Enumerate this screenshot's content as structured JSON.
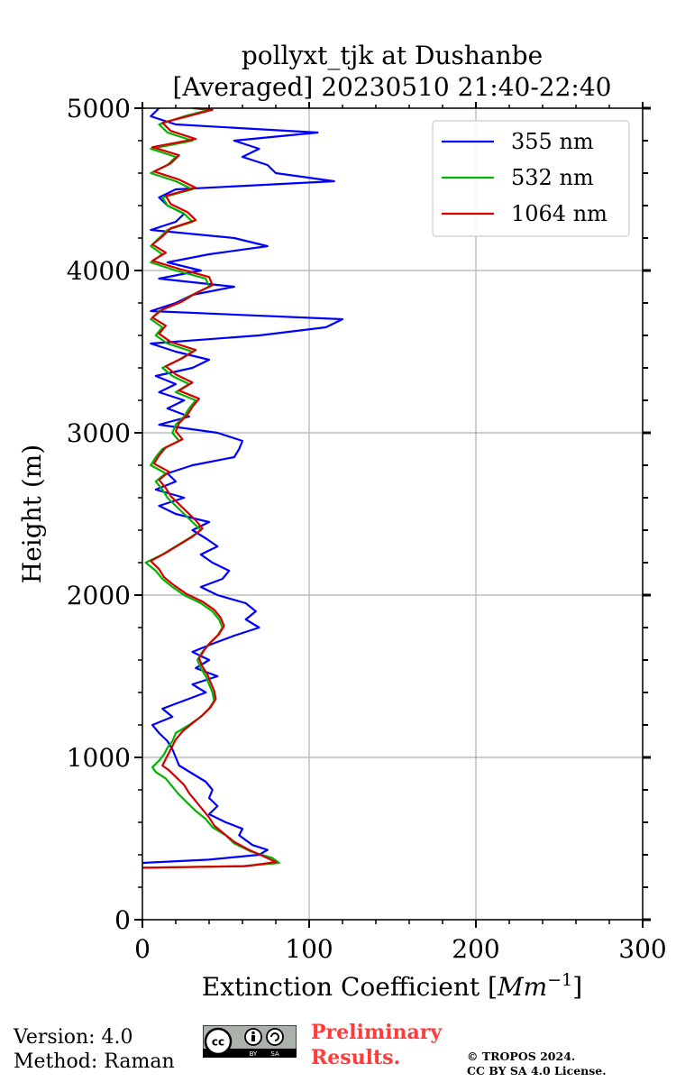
{
  "chart_data": {
    "type": "line",
    "title_line1": "pollyxt_tjk at Dushanbe",
    "title_line2": "[Averaged] 20230510 21:40-22:40",
    "xlabel_text": "Extinction Coefficient [",
    "xlabel_unit": "Mm",
    "xlabel_exp": "−1",
    "xlabel_close": "]",
    "ylabel": "Height (m)",
    "xlim": [
      0,
      300
    ],
    "ylim": [
      0,
      5000
    ],
    "xticks": [
      0,
      100,
      200,
      300
    ],
    "yticks": [
      0,
      1000,
      2000,
      3000,
      4000,
      5000
    ],
    "grid": true,
    "legend_location": "top-right",
    "series": [
      {
        "name": "355 nm",
        "color": "#0000ff",
        "points": [
          [
            0,
            350
          ],
          [
            40,
            370
          ],
          [
            70,
            400
          ],
          [
            75,
            430
          ],
          [
            66,
            460
          ],
          [
            58,
            520
          ],
          [
            60,
            560
          ],
          [
            50,
            600
          ],
          [
            40,
            650
          ],
          [
            45,
            700
          ],
          [
            40,
            750
          ],
          [
            42,
            800
          ],
          [
            38,
            850
          ],
          [
            30,
            900
          ],
          [
            22,
            950
          ],
          [
            20,
            1000
          ],
          [
            18,
            1050
          ],
          [
            15,
            1100
          ],
          [
            10,
            1150
          ],
          [
            6,
            1200
          ],
          [
            18,
            1250
          ],
          [
            12,
            1300
          ],
          [
            25,
            1350
          ],
          [
            38,
            1400
          ],
          [
            30,
            1450
          ],
          [
            45,
            1500
          ],
          [
            32,
            1550
          ],
          [
            40,
            1600
          ],
          [
            30,
            1650
          ],
          [
            42,
            1700
          ],
          [
            55,
            1750
          ],
          [
            70,
            1800
          ],
          [
            62,
            1850
          ],
          [
            68,
            1900
          ],
          [
            62,
            1950
          ],
          [
            45,
            2000
          ],
          [
            35,
            2050
          ],
          [
            48,
            2100
          ],
          [
            52,
            2150
          ],
          [
            42,
            2200
          ],
          [
            35,
            2250
          ],
          [
            45,
            2300
          ],
          [
            38,
            2350
          ],
          [
            30,
            2400
          ],
          [
            40,
            2450
          ],
          [
            20,
            2500
          ],
          [
            10,
            2550
          ],
          [
            25,
            2600
          ],
          [
            8,
            2650
          ],
          [
            20,
            2700
          ],
          [
            15,
            2750
          ],
          [
            30,
            2800
          ],
          [
            55,
            2850
          ],
          [
            58,
            2900
          ],
          [
            60,
            2950
          ],
          [
            45,
            3000
          ],
          [
            10,
            3050
          ],
          [
            28,
            3100
          ],
          [
            15,
            3150
          ],
          [
            25,
            3200
          ],
          [
            10,
            3250
          ],
          [
            20,
            3300
          ],
          [
            8,
            3350
          ],
          [
            30,
            3400
          ],
          [
            40,
            3450
          ],
          [
            20,
            3500
          ],
          [
            5,
            3550
          ],
          [
            70,
            3600
          ],
          [
            110,
            3650
          ],
          [
            120,
            3700
          ],
          [
            5,
            3750
          ],
          [
            20,
            3800
          ],
          [
            30,
            3850
          ],
          [
            55,
            3900
          ],
          [
            10,
            3950
          ],
          [
            35,
            4000
          ],
          [
            15,
            4050
          ],
          [
            40,
            4100
          ],
          [
            75,
            4150
          ],
          [
            55,
            4200
          ],
          [
            5,
            4250
          ],
          [
            20,
            4300
          ],
          [
            25,
            4350
          ],
          [
            15,
            4400
          ],
          [
            10,
            4450
          ],
          [
            20,
            4500
          ],
          [
            115,
            4550
          ],
          [
            80,
            4600
          ],
          [
            75,
            4650
          ],
          [
            60,
            4700
          ],
          [
            70,
            4750
          ],
          [
            55,
            4800
          ],
          [
            105,
            4850
          ],
          [
            20,
            4900
          ],
          [
            5,
            4950
          ],
          [
            10,
            5000
          ]
        ]
      },
      {
        "name": "532 nm",
        "color": "#00b400",
        "points": [
          [
            0,
            320
          ],
          [
            60,
            330
          ],
          [
            82,
            350
          ],
          [
            78,
            380
          ],
          [
            65,
            420
          ],
          [
            55,
            470
          ],
          [
            50,
            520
          ],
          [
            42,
            570
          ],
          [
            38,
            620
          ],
          [
            32,
            670
          ],
          [
            27,
            720
          ],
          [
            22,
            770
          ],
          [
            18,
            820
          ],
          [
            14,
            870
          ],
          [
            8,
            910
          ],
          [
            6,
            940
          ],
          [
            10,
            980
          ],
          [
            13,
            1020
          ],
          [
            15,
            1060
          ],
          [
            18,
            1100
          ],
          [
            20,
            1150
          ],
          [
            28,
            1200
          ],
          [
            35,
            1250
          ],
          [
            40,
            1300
          ],
          [
            43,
            1350
          ],
          [
            42,
            1400
          ],
          [
            40,
            1450
          ],
          [
            38,
            1500
          ],
          [
            35,
            1550
          ],
          [
            33,
            1600
          ],
          [
            36,
            1650
          ],
          [
            40,
            1700
          ],
          [
            45,
            1750
          ],
          [
            48,
            1800
          ],
          [
            46,
            1850
          ],
          [
            42,
            1900
          ],
          [
            35,
            1950
          ],
          [
            25,
            2000
          ],
          [
            18,
            2050
          ],
          [
            12,
            2100
          ],
          [
            8,
            2150
          ],
          [
            2,
            2200
          ],
          [
            12,
            2250
          ],
          [
            20,
            2300
          ],
          [
            28,
            2350
          ],
          [
            35,
            2400
          ],
          [
            30,
            2450
          ],
          [
            25,
            2500
          ],
          [
            20,
            2550
          ],
          [
            15,
            2600
          ],
          [
            12,
            2650
          ],
          [
            8,
            2700
          ],
          [
            14,
            2750
          ],
          [
            5,
            2800
          ],
          [
            8,
            2850
          ],
          [
            12,
            2900
          ],
          [
            22,
            2950
          ],
          [
            18,
            3000
          ],
          [
            20,
            3050
          ],
          [
            25,
            3100
          ],
          [
            28,
            3150
          ],
          [
            32,
            3200
          ],
          [
            20,
            3250
          ],
          [
            28,
            3300
          ],
          [
            18,
            3350
          ],
          [
            12,
            3400
          ],
          [
            22,
            3450
          ],
          [
            30,
            3500
          ],
          [
            15,
            3550
          ],
          [
            8,
            3600
          ],
          [
            12,
            3650
          ],
          [
            5,
            3700
          ],
          [
            10,
            3750
          ],
          [
            22,
            3800
          ],
          [
            30,
            3850
          ],
          [
            40,
            3900
          ],
          [
            38,
            3950
          ],
          [
            20,
            4000
          ],
          [
            5,
            4050
          ],
          [
            12,
            4100
          ],
          [
            5,
            4150
          ],
          [
            10,
            4200
          ],
          [
            15,
            4250
          ],
          [
            30,
            4300
          ],
          [
            25,
            4350
          ],
          [
            15,
            4400
          ],
          [
            12,
            4450
          ],
          [
            30,
            4500
          ],
          [
            20,
            4550
          ],
          [
            5,
            4600
          ],
          [
            15,
            4650
          ],
          [
            20,
            4700
          ],
          [
            5,
            4750
          ],
          [
            30,
            4800
          ],
          [
            15,
            4850
          ],
          [
            10,
            4900
          ],
          [
            25,
            4950
          ],
          [
            40,
            4990
          ],
          [
            30,
            5000
          ]
        ]
      },
      {
        "name": "1064 nm",
        "color": "#d40000",
        "points": [
          [
            0,
            320
          ],
          [
            62,
            330
          ],
          [
            80,
            355
          ],
          [
            74,
            385
          ],
          [
            64,
            430
          ],
          [
            55,
            480
          ],
          [
            49,
            530
          ],
          [
            43,
            580
          ],
          [
            40,
            630
          ],
          [
            36,
            680
          ],
          [
            32,
            730
          ],
          [
            28,
            780
          ],
          [
            25,
            830
          ],
          [
            20,
            880
          ],
          [
            16,
            920
          ],
          [
            12,
            950
          ],
          [
            14,
            990
          ],
          [
            16,
            1030
          ],
          [
            18,
            1070
          ],
          [
            20,
            1110
          ],
          [
            24,
            1160
          ],
          [
            30,
            1210
          ],
          [
            36,
            1260
          ],
          [
            41,
            1310
          ],
          [
            44,
            1360
          ],
          [
            43,
            1410
          ],
          [
            41,
            1460
          ],
          [
            39,
            1510
          ],
          [
            36,
            1560
          ],
          [
            34,
            1610
          ],
          [
            37,
            1660
          ],
          [
            41,
            1710
          ],
          [
            46,
            1760
          ],
          [
            49,
            1810
          ],
          [
            47,
            1860
          ],
          [
            43,
            1910
          ],
          [
            36,
            1960
          ],
          [
            26,
            2010
          ],
          [
            19,
            2060
          ],
          [
            13,
            2110
          ],
          [
            10,
            2160
          ],
          [
            5,
            2210
          ],
          [
            14,
            2260
          ],
          [
            22,
            2310
          ],
          [
            30,
            2360
          ],
          [
            36,
            2410
          ],
          [
            32,
            2460
          ],
          [
            27,
            2510
          ],
          [
            22,
            2560
          ],
          [
            17,
            2610
          ],
          [
            14,
            2660
          ],
          [
            10,
            2710
          ],
          [
            16,
            2760
          ],
          [
            7,
            2810
          ],
          [
            10,
            2860
          ],
          [
            14,
            2910
          ],
          [
            24,
            2960
          ],
          [
            20,
            3010
          ],
          [
            22,
            3060
          ],
          [
            27,
            3110
          ],
          [
            30,
            3160
          ],
          [
            34,
            3210
          ],
          [
            22,
            3260
          ],
          [
            30,
            3310
          ],
          [
            20,
            3360
          ],
          [
            14,
            3410
          ],
          [
            24,
            3460
          ],
          [
            32,
            3510
          ],
          [
            17,
            3560
          ],
          [
            10,
            3610
          ],
          [
            14,
            3660
          ],
          [
            6,
            3710
          ],
          [
            12,
            3760
          ],
          [
            24,
            3810
          ],
          [
            32,
            3860
          ],
          [
            42,
            3910
          ],
          [
            40,
            3960
          ],
          [
            22,
            4010
          ],
          [
            6,
            4060
          ],
          [
            14,
            4110
          ],
          [
            6,
            4160
          ],
          [
            12,
            4210
          ],
          [
            17,
            4260
          ],
          [
            32,
            4310
          ],
          [
            27,
            4360
          ],
          [
            17,
            4410
          ],
          [
            14,
            4460
          ],
          [
            32,
            4510
          ],
          [
            22,
            4560
          ],
          [
            7,
            4610
          ],
          [
            17,
            4660
          ],
          [
            22,
            4710
          ],
          [
            6,
            4760
          ],
          [
            32,
            4810
          ],
          [
            17,
            4860
          ],
          [
            12,
            4910
          ],
          [
            27,
            4950
          ],
          [
            42,
            4990
          ],
          [
            32,
            5000
          ]
        ]
      }
    ]
  },
  "footer": {
    "version": "Version: 4.0",
    "method": "Method: Raman",
    "preliminary_line1": "Preliminary",
    "preliminary_line2": "Results.",
    "copyright_line1": "© TROPOS 2024.",
    "copyright_line2": "CC BY SA 4.0 License.",
    "cc_left": "BY",
    "cc_right": "SA",
    "cc_logo": "cc"
  }
}
